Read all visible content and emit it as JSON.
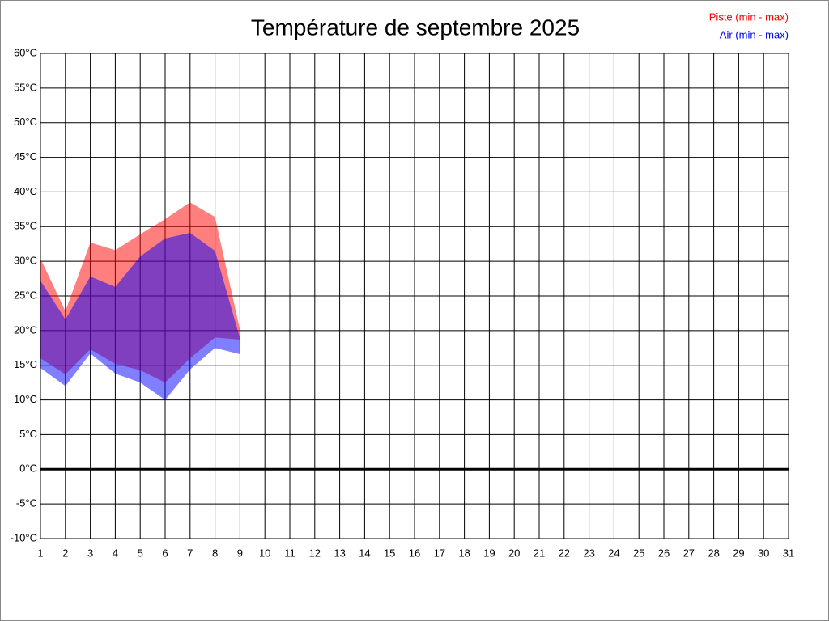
{
  "chart_data": {
    "type": "range-area",
    "title": "Température de septembre 2025",
    "x": [
      1,
      2,
      3,
      4,
      5,
      6,
      7,
      8,
      9,
      10,
      11,
      12,
      13,
      14,
      15,
      16,
      17,
      18,
      19,
      20,
      21,
      22,
      23,
      24,
      25,
      26,
      27,
      28,
      29,
      30,
      31
    ],
    "series": [
      {
        "name": "Piste (min - max)",
        "color": "#ff0000",
        "min": [
          16.0,
          13.7,
          17.3,
          15.2,
          14.3,
          12.5,
          16.0,
          19.0,
          18.7,
          null,
          null,
          null,
          null,
          null,
          null,
          null,
          null,
          null,
          null,
          null,
          null,
          null,
          null,
          null,
          null,
          null,
          null,
          null,
          null,
          null,
          null
        ],
        "max": [
          30.4,
          22.8,
          32.7,
          31.6,
          33.9,
          36.1,
          38.5,
          36.4,
          20.1,
          null,
          null,
          null,
          null,
          null,
          null,
          null,
          null,
          null,
          null,
          null,
          null,
          null,
          null,
          null,
          null,
          null,
          null,
          null,
          null,
          null,
          null
        ]
      },
      {
        "name": "Air (min - max)",
        "color": "#0000ff",
        "min": [
          14.6,
          12.0,
          16.7,
          13.8,
          12.5,
          10.0,
          14.4,
          17.5,
          16.6,
          null,
          null,
          null,
          null,
          null,
          null,
          null,
          null,
          null,
          null,
          null,
          null,
          null,
          null,
          null,
          null,
          null,
          null,
          null,
          null,
          null,
          null
        ],
        "max": [
          27.2,
          21.6,
          27.8,
          26.3,
          30.7,
          33.3,
          34.1,
          31.5,
          18.9,
          null,
          null,
          null,
          null,
          null,
          null,
          null,
          null,
          null,
          null,
          null,
          null,
          null,
          null,
          null,
          null,
          null,
          null,
          null,
          null,
          null,
          null
        ]
      }
    ],
    "xlim": [
      1,
      31
    ],
    "xticks": [
      1,
      2,
      3,
      4,
      5,
      6,
      7,
      8,
      9,
      10,
      11,
      12,
      13,
      14,
      15,
      16,
      17,
      18,
      19,
      20,
      21,
      22,
      23,
      24,
      25,
      26,
      27,
      28,
      29,
      30,
      31
    ],
    "ylim": [
      -10,
      60
    ],
    "yticks": [
      {
        "value": -10,
        "label": "-10°C"
      },
      {
        "value": -5,
        "label": "-5°C"
      },
      {
        "value": 0,
        "label": "0°C"
      },
      {
        "value": 5,
        "label": "5°C"
      },
      {
        "value": 10,
        "label": "10°C"
      },
      {
        "value": 15,
        "label": "15°C"
      },
      {
        "value": 20,
        "label": "20°C"
      },
      {
        "value": 25,
        "label": "25°C"
      },
      {
        "value": 30,
        "label": "30°C"
      },
      {
        "value": 35,
        "label": "35°C"
      },
      {
        "value": 40,
        "label": "40°C"
      },
      {
        "value": 45,
        "label": "45°C"
      },
      {
        "value": 50,
        "label": "50°C"
      },
      {
        "value": 55,
        "label": "55°C"
      },
      {
        "value": 60,
        "label": "60°C"
      }
    ],
    "grid": true,
    "zero_line": true,
    "legend": "top-right",
    "opacity": 0.5
  }
}
